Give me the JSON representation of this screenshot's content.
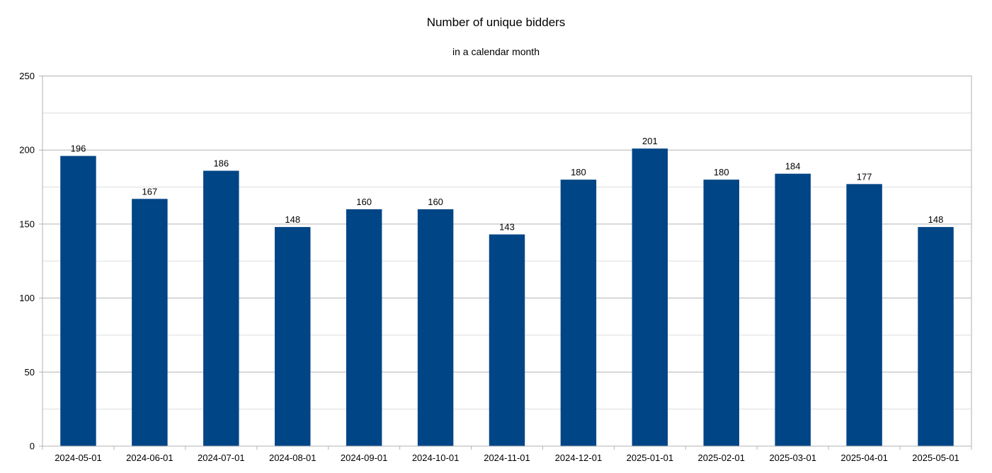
{
  "chart_data": {
    "type": "bar",
    "title": "Number of unique bidders",
    "subtitle": "in a calendar month",
    "xlabel": "",
    "ylabel": "",
    "categories": [
      "2024-05-01",
      "2024-06-01",
      "2024-07-01",
      "2024-08-01",
      "2024-09-01",
      "2024-10-01",
      "2024-11-01",
      "2024-12-01",
      "2025-01-01",
      "2025-02-01",
      "2025-03-01",
      "2025-04-01",
      "2025-05-01"
    ],
    "values": [
      196,
      167,
      186,
      148,
      160,
      160,
      143,
      180,
      201,
      180,
      184,
      177,
      148
    ],
    "ylim": [
      0,
      250
    ],
    "yticks": [
      0,
      50,
      100,
      150,
      200,
      250
    ],
    "minor_gridlines": [
      25,
      75,
      125,
      175,
      225
    ],
    "grid": true,
    "legend": "none",
    "data_labels": true,
    "bar_color": "#004586",
    "grid_color": "#b3b3b3",
    "minor_grid_color": "#dddddd"
  }
}
